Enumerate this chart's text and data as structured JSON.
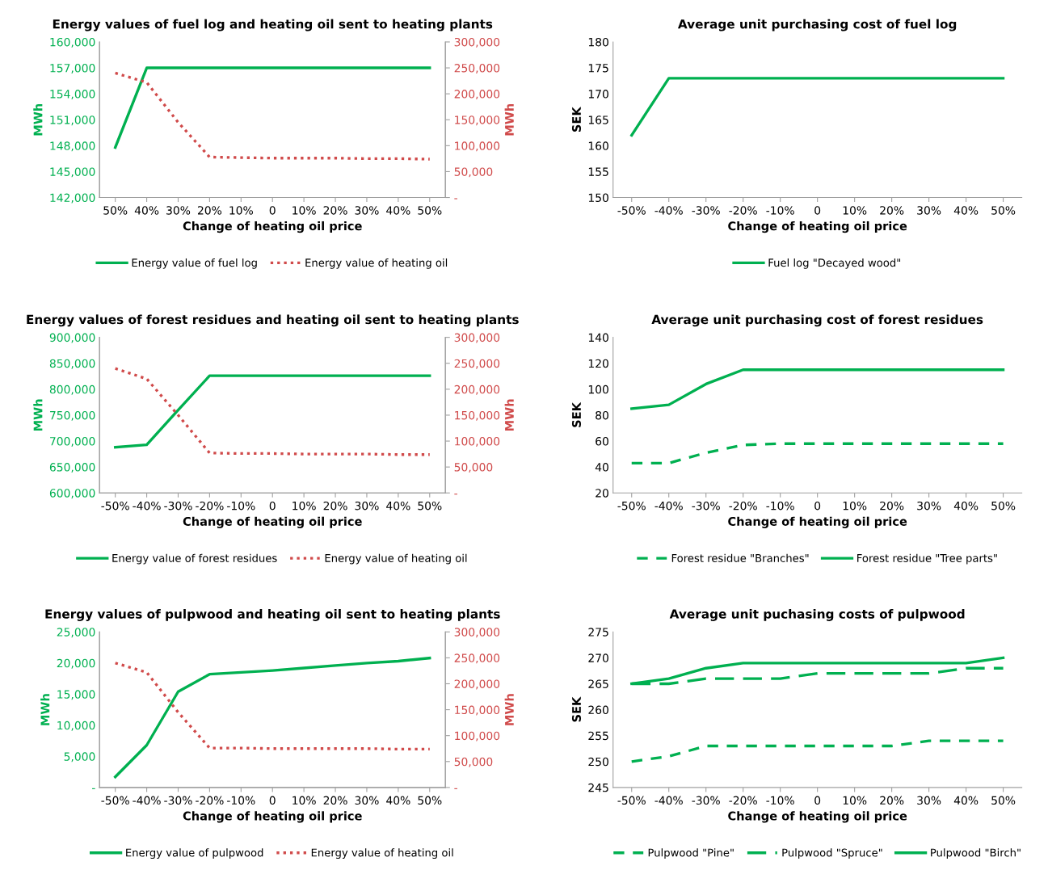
{
  "chart_data": [
    {
      "type": "line",
      "title": "Energy values of fuel log and heating oil sent to heating plants",
      "xlabel": "Change of heating oil price",
      "ylabel": "MWh",
      "y2label": "MWh",
      "categories": [
        "50%",
        "40%",
        "30%",
        "20%",
        "10%",
        "0",
        "10%",
        "20%",
        "30%",
        "40%",
        "50%"
      ],
      "series": [
        {
          "name": "Energy value of fuel log",
          "color": "#00b050",
          "line_style": "solid",
          "values": [
            147800,
            157000,
            157000,
            157000,
            157000,
            157000,
            157000,
            157000,
            157000,
            157000,
            157000
          ]
        },
        {
          "name": "Energy value of heating oil",
          "color": "#d04a4a",
          "line_style": "dotted",
          "axis": "y2",
          "values": [
            240000,
            222000,
            145000,
            78000,
            77000,
            76000,
            76000,
            76000,
            75000,
            75000,
            74000
          ]
        }
      ],
      "ylim": [
        142000,
        160000
      ],
      "yticks": [
        {
          "value": 142000,
          "label": "142,000"
        },
        {
          "value": 145000,
          "label": "145,000"
        },
        {
          "value": 148000,
          "label": "148,000"
        },
        {
          "value": 151000,
          "label": "151,000"
        },
        {
          "value": 154000,
          "label": "154,000"
        },
        {
          "value": 157000,
          "label": "157,000"
        },
        {
          "value": 160000,
          "label": "160,000"
        }
      ],
      "y2lim": [
        0,
        300000
      ],
      "y2ticks": [
        {
          "value": 0,
          "label": "-"
        },
        {
          "value": 50000,
          "label": "50,000"
        },
        {
          "value": 100000,
          "label": "100,000"
        },
        {
          "value": 150000,
          "label": "150,000"
        },
        {
          "value": 200000,
          "label": "200,000"
        },
        {
          "value": 250000,
          "label": "250,000"
        },
        {
          "value": 300000,
          "label": "300,000"
        }
      ],
      "grid": false,
      "legend": "bottom",
      "marker": "none"
    },
    {
      "type": "line",
      "title": "Average unit purchasing cost of fuel log",
      "xlabel": "Change of heating oil price",
      "ylabel": "SEK",
      "categories": [
        "-50%",
        "-40%",
        "-30%",
        "-20%",
        "-10%",
        "0",
        "10%",
        "20%",
        "30%",
        "40%",
        "50%"
      ],
      "series": [
        {
          "name": "Fuel log \"Decayed wood\"",
          "color": "#00b050",
          "line_style": "solid",
          "values": [
            162,
            173,
            173,
            173,
            173,
            173,
            173,
            173,
            173,
            173,
            173
          ]
        }
      ],
      "ylim": [
        150,
        180
      ],
      "yticks": [
        150,
        155,
        160,
        165,
        170,
        175,
        180
      ],
      "grid": false,
      "legend": "bottom",
      "marker": "none"
    },
    {
      "type": "line",
      "title": "Energy values of forest residues and heating oil sent to heating plants",
      "xlabel": "Change of heating oil price",
      "ylabel": "MWh",
      "y2label": "MWh",
      "categories": [
        "-50%",
        "-40%",
        "-30%",
        "-20%",
        "-10%",
        "0",
        "10%",
        "20%",
        "30%",
        "40%",
        "50%"
      ],
      "series": [
        {
          "name": "Energy value of forest residues",
          "color": "#00b050",
          "line_style": "solid",
          "values": [
            688000,
            693000,
            760000,
            826000,
            826000,
            826000,
            826000,
            826000,
            826000,
            826000,
            826000
          ]
        },
        {
          "name": "Energy value of heating oil",
          "color": "#d04a4a",
          "line_style": "dotted",
          "axis": "y2",
          "values": [
            240000,
            220000,
            150000,
            77000,
            76000,
            76000,
            75000,
            75000,
            75000,
            74000,
            74000
          ]
        }
      ],
      "ylim": [
        600000,
        900000
      ],
      "yticks": [
        {
          "value": 600000,
          "label": "600,000"
        },
        {
          "value": 650000,
          "label": "650,000"
        },
        {
          "value": 700000,
          "label": "700,000"
        },
        {
          "value": 750000,
          "label": "750,000"
        },
        {
          "value": 800000,
          "label": "800,000"
        },
        {
          "value": 850000,
          "label": "850,000"
        },
        {
          "value": 900000,
          "label": "900,000"
        }
      ],
      "y2lim": [
        0,
        300000
      ],
      "y2ticks": [
        {
          "value": 0,
          "label": "-"
        },
        {
          "value": 50000,
          "label": "50,000"
        },
        {
          "value": 100000,
          "label": "100,000"
        },
        {
          "value": 150000,
          "label": "150,000"
        },
        {
          "value": 200000,
          "label": "200,000"
        },
        {
          "value": 250000,
          "label": "250,000"
        },
        {
          "value": 300000,
          "label": "300,000"
        }
      ],
      "grid": false,
      "legend": "bottom",
      "marker": "none"
    },
    {
      "type": "line",
      "title": "Average unit purchasing cost of forest residues",
      "xlabel": "Change of heating oil price",
      "ylabel": "SEK",
      "categories": [
        "-50%",
        "-40%",
        "-30%",
        "-20%",
        "-10%",
        "0",
        "10%",
        "20%",
        "30%",
        "40%",
        "50%"
      ],
      "series": [
        {
          "name": "Forest residue \"Branches\"",
          "color": "#00b050",
          "line_style": "dashed",
          "values": [
            43,
            43,
            51,
            57,
            58,
            58,
            58,
            58,
            58,
            58,
            58
          ]
        },
        {
          "name": "Forest residue \"Tree parts\"",
          "color": "#00b050",
          "line_style": "solid",
          "values": [
            85,
            88,
            104,
            115,
            115,
            115,
            115,
            115,
            115,
            115,
            115
          ]
        }
      ],
      "ylim": [
        20,
        140
      ],
      "yticks": [
        20,
        40,
        60,
        80,
        100,
        120,
        140
      ],
      "grid": false,
      "legend": "bottom",
      "marker": "none"
    },
    {
      "type": "line",
      "title": "Energy values of pulpwood and heating oil sent to heating plants",
      "xlabel": "Change of heating oil price",
      "ylabel": "MWh",
      "y2label": "MWh",
      "categories": [
        "-50%",
        "-40%",
        "-30%",
        "-20%",
        "-10%",
        "0",
        "10%",
        "20%",
        "30%",
        "40%",
        "50%"
      ],
      "series": [
        {
          "name": "Energy value of pulpwood",
          "color": "#00b050",
          "line_style": "solid",
          "values": [
            1700,
            6800,
            15400,
            18200,
            18500,
            18800,
            19200,
            19600,
            20000,
            20300,
            20800
          ]
        },
        {
          "name": "Energy value of heating oil",
          "color": "#d04a4a",
          "line_style": "dotted",
          "axis": "y2",
          "values": [
            240000,
            222000,
            145000,
            76000,
            76000,
            75000,
            75000,
            75000,
            75000,
            74000,
            74000
          ]
        }
      ],
      "ylim": [
        0,
        25000
      ],
      "yticks": [
        {
          "value": 0,
          "label": "-"
        },
        {
          "value": 5000,
          "label": "5,000"
        },
        {
          "value": 10000,
          "label": "10,000"
        },
        {
          "value": 15000,
          "label": "15,000"
        },
        {
          "value": 20000,
          "label": "20,000"
        },
        {
          "value": 25000,
          "label": "25,000"
        }
      ],
      "y2lim": [
        0,
        300000
      ],
      "y2ticks": [
        {
          "value": 0,
          "label": "-"
        },
        {
          "value": 50000,
          "label": "50,000"
        },
        {
          "value": 100000,
          "label": "100,000"
        },
        {
          "value": 150000,
          "label": "150,000"
        },
        {
          "value": 200000,
          "label": "200,000"
        },
        {
          "value": 250000,
          "label": "250,000"
        },
        {
          "value": 300000,
          "label": "300,000"
        }
      ],
      "grid": false,
      "legend": "bottom",
      "marker": "none"
    },
    {
      "type": "line",
      "title": "Average unit puchasing costs of pulpwood",
      "xlabel": "Change of heating oil price",
      "ylabel": "SEK",
      "categories": [
        "-50%",
        "-40%",
        "-30%",
        "-20%",
        "-10%",
        "0",
        "10%",
        "20%",
        "30%",
        "40%",
        "50%"
      ],
      "series": [
        {
          "name": "Pulpwood \"Pine\"",
          "color": "#00b050",
          "line_style": "dashed",
          "values": [
            250,
            251,
            253,
            253,
            253,
            253,
            253,
            253,
            254,
            254,
            254
          ]
        },
        {
          "name": "Pulpwood \"Spruce\"",
          "color": "#00b050",
          "line_style": "longdash",
          "values": [
            265,
            265,
            266,
            266,
            266,
            267,
            267,
            267,
            267,
            268,
            268
          ]
        },
        {
          "name": "Pulpwood \"Birch\"",
          "color": "#00b050",
          "line_style": "solid",
          "values": [
            265,
            266,
            268,
            269,
            269,
            269,
            269,
            269,
            269,
            269,
            270
          ]
        }
      ],
      "ylim": [
        245,
        275
      ],
      "yticks": [
        245,
        250,
        255,
        260,
        265,
        270,
        275
      ],
      "grid": false,
      "legend": "bottom",
      "marker": "none"
    }
  ]
}
